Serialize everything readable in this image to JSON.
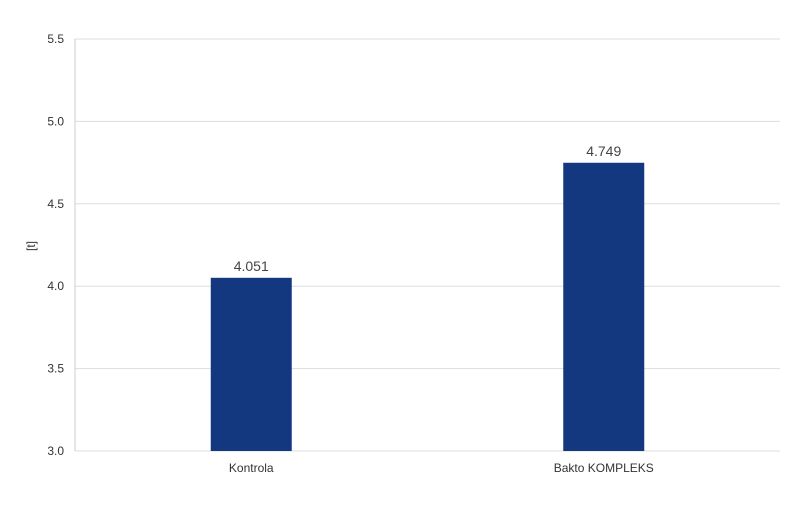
{
  "chart_data": {
    "type": "bar",
    "title": "",
    "xlabel": "",
    "ylabel": "[t]",
    "categories": [
      "Kontrola",
      "Bakto KOMPLEKS"
    ],
    "values": [
      4.051,
      4.749
    ],
    "value_labels": [
      "4.051",
      "4.749"
    ],
    "ylim": [
      3.0,
      5.5
    ],
    "yticks": [
      3.0,
      3.5,
      4.0,
      4.5,
      5.0,
      5.5
    ],
    "ytick_labels": [
      "3.0",
      "3.5",
      "4.0",
      "4.5",
      "5.0",
      "5.5"
    ],
    "grid": true,
    "legend": "none",
    "bar_color": "#13387f"
  }
}
